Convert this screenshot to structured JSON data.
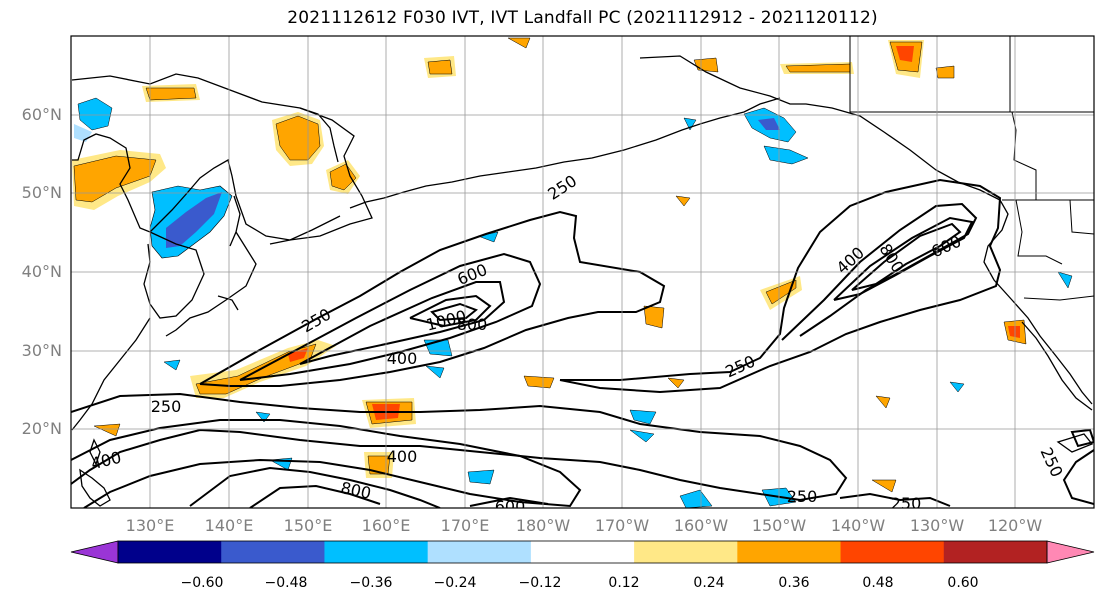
{
  "title": "2021112612 F030 IVT, IVT Landfall PC (2021112912 - 2021120112)",
  "axes": {
    "lat_ticks": [
      "60°N",
      "50°N",
      "40°N",
      "30°N",
      "20°N"
    ],
    "lon_ticks": [
      "130°E",
      "140°E",
      "150°E",
      "160°E",
      "170°E",
      "180°W",
      "170°W",
      "160°W",
      "150°W",
      "140°W",
      "130°W",
      "120°W"
    ]
  },
  "contour_labels": [
    "250",
    "250",
    "600",
    "1000",
    "800",
    "400",
    "250",
    "400",
    "800",
    "600",
    "250",
    "400",
    "400",
    "800",
    "600",
    "250",
    "250",
    "250"
  ],
  "colorbar": {
    "ticks": [
      "−0.60",
      "−0.48",
      "−0.36",
      "−0.24",
      "−0.12",
      "0.12",
      "0.24",
      "0.36",
      "0.48",
      "0.60"
    ],
    "colors": [
      "#9a35d6",
      "#00008b",
      "#3a5acd",
      "#00bfff",
      "#afe0ff",
      "#ffffff",
      "#ffe887",
      "#ffa500",
      "#ff4500",
      "#b22222",
      "#ff88b4"
    ]
  },
  "palette": {
    "neg_weak": "#afe0ff",
    "neg_mid": "#00bfff",
    "neg_strong": "#3a5acd",
    "pos_weak": "#ffe887",
    "pos_mid": "#ffa500",
    "pos_strong": "#ff4500"
  }
}
